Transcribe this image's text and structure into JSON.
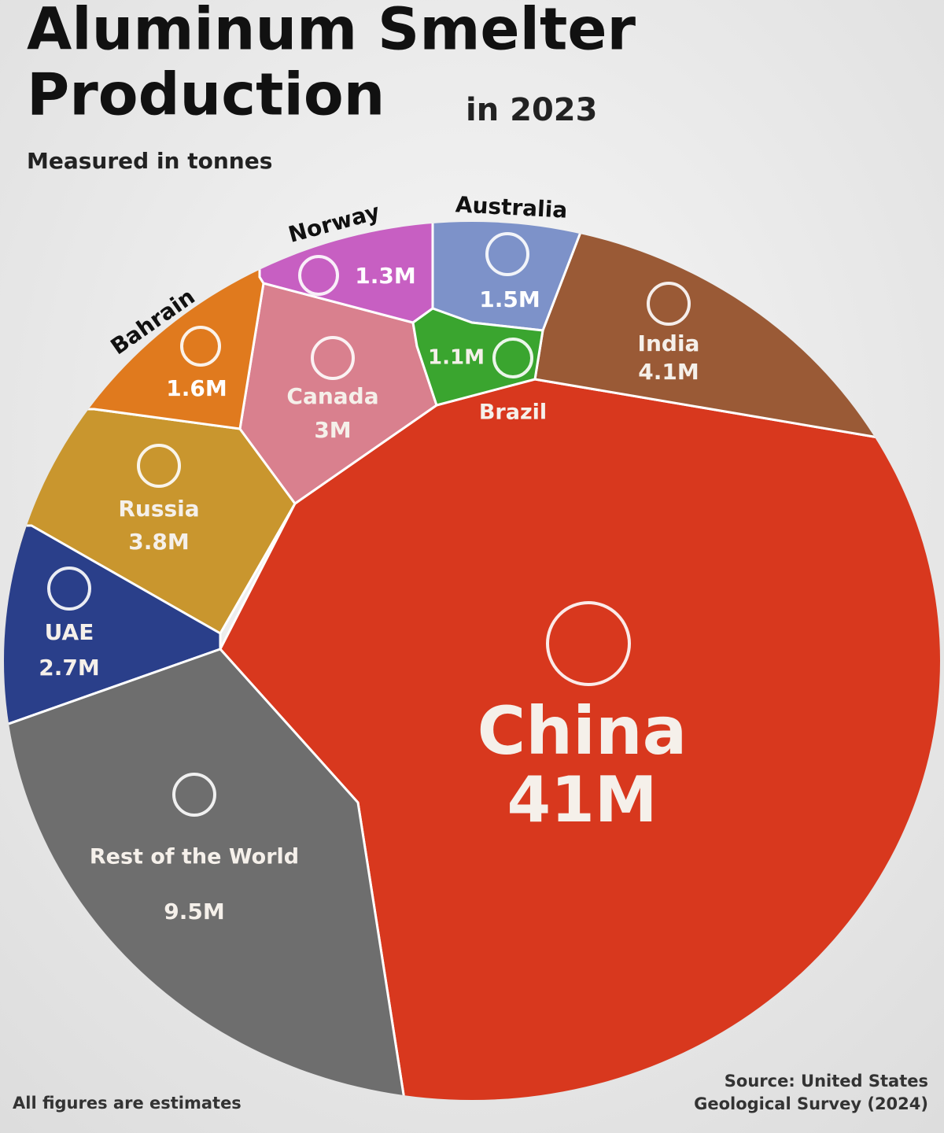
{
  "chart_data": {
    "type": "voronoi",
    "title": [
      "Aluminum Smelter",
      "Production"
    ],
    "title_suffix": "in 2023",
    "subtitle": "Measured in tonnes",
    "categories": [
      "China",
      "India",
      "Russia",
      "Canada",
      "UAE",
      "Bahrain",
      "Australia",
      "Norway",
      "Brazil",
      "Rest of the World"
    ],
    "values": [
      41000000,
      4100000,
      3800000,
      3000000,
      2700000,
      1600000,
      1500000,
      1300000,
      1100000,
      9500000
    ],
    "value_labels": [
      "41M",
      "4.1M",
      "3.8M",
      "3M",
      "2.7M",
      "1.6M",
      "1.5M",
      "1.3M",
      "1.1M",
      "9.5M"
    ],
    "colors": [
      "#d8381e",
      "#9a5a36",
      "#c9962e",
      "#d9808e",
      "#2a3f8a",
      "#e07a1e",
      "#7d92c9",
      "#c75fc2",
      "#3aa52f",
      "#6e6e6e"
    ],
    "note": "All figures are estimates",
    "source": [
      "Source: United States",
      "Geological Survey (2024)"
    ]
  }
}
